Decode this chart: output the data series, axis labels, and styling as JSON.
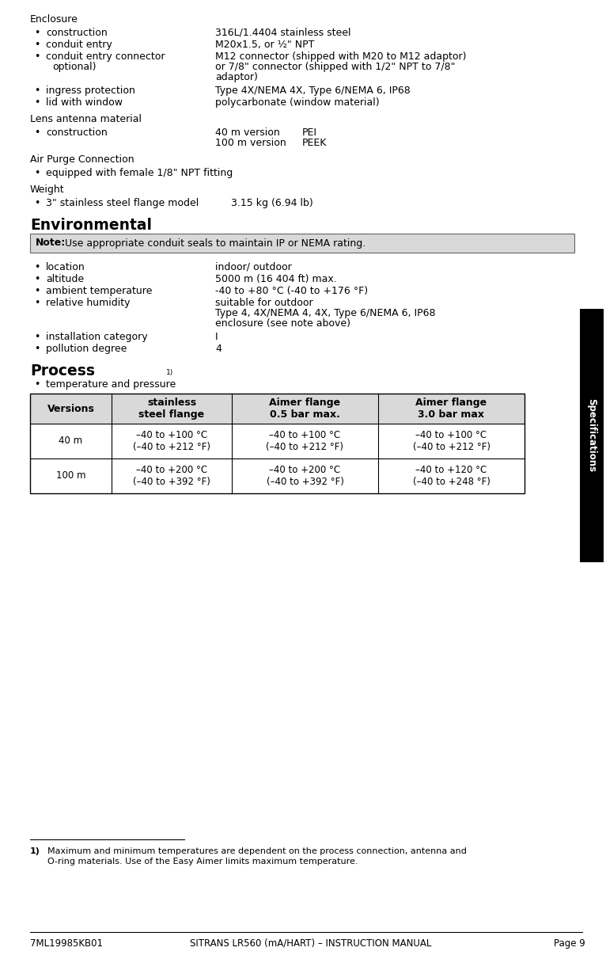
{
  "bg_color": "#ffffff",
  "text_color": "#000000",
  "sidebar_color": "#000000",
  "sidebar_text": "Specifications",
  "note_bg": "#d9d9d9",
  "table_header_bg": "#d9d9d9",
  "table_border": "#000000",
  "enclosure_title": "Enclosure",
  "lens_title": "Lens antenna material",
  "airpurge_title": "Air Purge Connection",
  "weight_title": "Weight",
  "environmental_title": "Environmental",
  "process_title": "Process",
  "note_bold": "Note:",
  "note_rest": " Use appropriate conduit seals to maintain IP or NEMA rating.",
  "table_headers": [
    "Versions",
    "stainless\nsteel flange",
    "Aimer flange\n0.5 bar max.",
    "Aimer flange\n3.0 bar max"
  ],
  "table_rows": [
    [
      "40 m",
      "–40 to +100 °C\n(–40 to +212 °F)",
      "–40 to +100 °C\n(–40 to +212 °F)",
      "–40 to +100 °C\n(–40 to +212 °F)"
    ],
    [
      "100 m",
      "–40 to +200 °C\n(–40 to +392 °F)",
      "–40 to +200 °C\n(–40 to +392 °F)",
      "–40 to +120 °C\n(–40 to +248 °F)"
    ]
  ],
  "footnote_num": "1)",
  "footnote_line1": "Maximum and minimum temperatures are dependent on the process connection, antenna and",
  "footnote_line2": "O-ring materials. Use of the Easy Aimer limits maximum temperature.",
  "footer_left": "7ML19985KB01",
  "footer_center": "SITRANS LR560 (mA/HART) – INSTRUCTION MANUAL",
  "footer_right": "Page 9"
}
